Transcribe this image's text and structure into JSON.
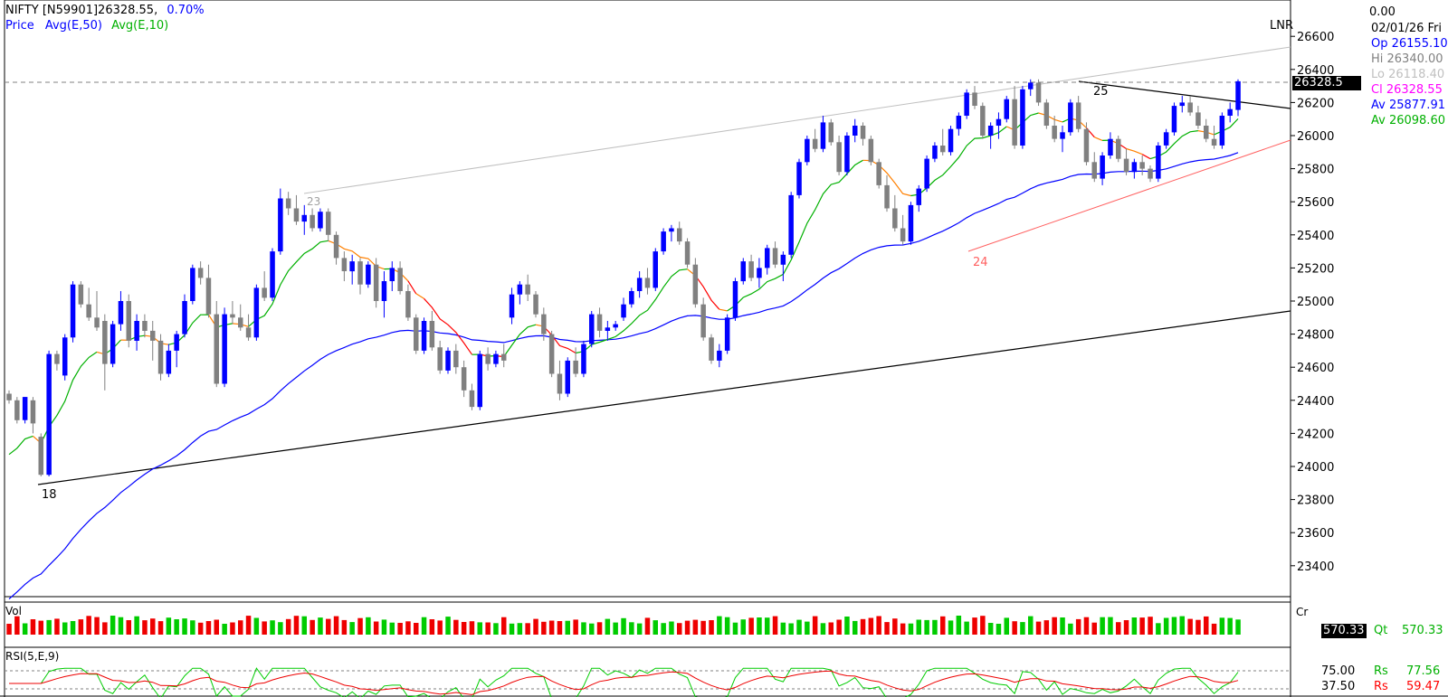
{
  "header": {
    "symbol_line": "NIFTY [N59901]26328.55,",
    "change": "0.70%",
    "legend_price": "Price",
    "legend_avg50": "Avg(E,50)",
    "legend_avg10": "Avg(E,10)"
  },
  "right_panel": {
    "top_value": "0.00",
    "date": "02/01/26 Fri",
    "lnr": "LNR",
    "open": "Op 26155.10",
    "high": "Hi  26340.00",
    "low": "Lo  26118.40",
    "close": "Cl  26328.55",
    "avg1": "Av 25877.91",
    "avg2": "Av 26098.60",
    "last_price_box": "26328.5"
  },
  "volume_panel": {
    "label": "Vol",
    "cr": "Cr",
    "qt_label": "Qt",
    "qt_value": "570.33",
    "box_value": "570.33"
  },
  "rsi_panel": {
    "label": "RSI(5,E,9)",
    "level_high": "75.00",
    "level_low": "37.50",
    "rs1_label": "Rs",
    "rs1_value": "77.56",
    "rs2_label": "Rs",
    "rs2_value": "59.47"
  },
  "annotations": {
    "a18": "18",
    "a23": "23",
    "a24": "24",
    "a25": "25"
  },
  "colors": {
    "up": "#0000ff",
    "down": "#808080",
    "ema50": "#0000ff",
    "ema10": "#00b000",
    "ema_red": "#ff0000",
    "ema_orange": "#ff8000",
    "vol_up": "#00cc00",
    "vol_down": "#ee0000"
  },
  "chart_data": {
    "type": "candlestick",
    "y_ticks": [
      "26600",
      "26400",
      "26200",
      "26000",
      "25800",
      "25600",
      "25400",
      "25200",
      "25000",
      "24800",
      "24600",
      "24400",
      "24200",
      "24000",
      "23800",
      "23600",
      "23400"
    ],
    "ylim": [
      23300,
      26720
    ],
    "candles": [
      [
        24440,
        24460,
        24380,
        24400
      ],
      [
        24400,
        24420,
        24260,
        24280
      ],
      [
        24280,
        24420,
        24260,
        24420
      ],
      [
        24400,
        24420,
        24200,
        24260
      ],
      [
        24180,
        24200,
        23940,
        23950
      ],
      [
        23950,
        24700,
        23940,
        24680
      ],
      [
        24680,
        24700,
        24580,
        24620
      ],
      [
        24550,
        24800,
        24520,
        24780
      ],
      [
        24780,
        25120,
        24750,
        25100
      ],
      [
        25100,
        25120,
        24960,
        24980
      ],
      [
        24980,
        25080,
        24880,
        24900
      ],
      [
        24900,
        25060,
        24820,
        24840
      ],
      [
        24880,
        24920,
        24460,
        24620
      ],
      [
        24620,
        24880,
        24600,
        24860
      ],
      [
        24860,
        25060,
        24820,
        25000
      ],
      [
        25000,
        25040,
        24720,
        24760
      ],
      [
        24760,
        24920,
        24700,
        24880
      ],
      [
        24880,
        24920,
        24780,
        24820
      ],
      [
        24820,
        24880,
        24640,
        24760
      ],
      [
        24760,
        24800,
        24520,
        24560
      ],
      [
        24560,
        24740,
        24540,
        24700
      ],
      [
        24700,
        24820,
        24600,
        24800
      ],
      [
        24800,
        25040,
        24780,
        25000
      ],
      [
        25000,
        25220,
        24980,
        25200
      ],
      [
        25200,
        25240,
        25100,
        25140
      ],
      [
        25140,
        25220,
        24900,
        24920
      ],
      [
        24920,
        25000,
        24480,
        24500
      ],
      [
        24500,
        24960,
        24480,
        24920
      ],
      [
        24920,
        25000,
        24860,
        24900
      ],
      [
        24900,
        24980,
        24820,
        24840
      ],
      [
        24840,
        24920,
        24760,
        24780
      ],
      [
        24780,
        25100,
        24760,
        25080
      ],
      [
        25080,
        25180,
        25000,
        25020
      ],
      [
        25020,
        25320,
        25000,
        25300
      ],
      [
        25300,
        25680,
        25280,
        25620
      ],
      [
        25620,
        25660,
        25520,
        25560
      ],
      [
        25560,
        25640,
        25460,
        25480
      ],
      [
        25480,
        25580,
        25400,
        25520
      ],
      [
        25520,
        25560,
        25420,
        25440
      ],
      [
        25440,
        25560,
        25420,
        25540
      ],
      [
        25540,
        25560,
        25360,
        25400
      ],
      [
        25400,
        25420,
        25220,
        25260
      ],
      [
        25260,
        25300,
        25120,
        25180
      ],
      [
        25180,
        25280,
        25100,
        25240
      ],
      [
        25240,
        25260,
        25040,
        25100
      ],
      [
        25100,
        25240,
        25080,
        25220
      ],
      [
        25220,
        25260,
        24960,
        25000
      ],
      [
        25000,
        25180,
        24900,
        25120
      ],
      [
        25120,
        25240,
        25060,
        25200
      ],
      [
        25200,
        25240,
        25040,
        25060
      ],
      [
        25060,
        25100,
        24880,
        24900
      ],
      [
        24900,
        24920,
        24680,
        24700
      ],
      [
        24700,
        24900,
        24680,
        24880
      ],
      [
        24880,
        24940,
        24700,
        24720
      ],
      [
        24720,
        24760,
        24560,
        24580
      ],
      [
        24580,
        24720,
        24560,
        24700
      ],
      [
        24700,
        24740,
        24560,
        24600
      ],
      [
        24600,
        24640,
        24420,
        24460
      ],
      [
        24460,
        24500,
        24340,
        24360
      ],
      [
        24360,
        24700,
        24340,
        24680
      ],
      [
        24680,
        24720,
        24580,
        24620
      ],
      [
        24620,
        24700,
        24600,
        24680
      ],
      [
        24680,
        24740,
        24600,
        24640
      ],
      [
        24900,
        25080,
        24860,
        25040
      ],
      [
        25040,
        25120,
        24980,
        25100
      ],
      [
        25100,
        25160,
        25000,
        25040
      ],
      [
        25040,
        25060,
        24900,
        24920
      ],
      [
        24920,
        24960,
        24760,
        24800
      ],
      [
        24800,
        24820,
        24540,
        24560
      ],
      [
        24560,
        24640,
        24400,
        24440
      ],
      [
        24440,
        24660,
        24420,
        24640
      ],
      [
        24640,
        24720,
        24540,
        24560
      ],
      [
        24560,
        24760,
        24540,
        24740
      ],
      [
        24740,
        24940,
        24720,
        24920
      ],
      [
        24920,
        24960,
        24780,
        24820
      ],
      [
        24820,
        24880,
        24760,
        24840
      ],
      [
        24840,
        24880,
        24820,
        24860
      ],
      [
        24900,
        25020,
        24880,
        24980
      ],
      [
        24980,
        25080,
        24960,
        25060
      ],
      [
        25060,
        25180,
        25020,
        25140
      ],
      [
        25140,
        25200,
        25040,
        25080
      ],
      [
        25080,
        25320,
        25060,
        25300
      ],
      [
        25300,
        25440,
        25280,
        25420
      ],
      [
        25420,
        25460,
        25360,
        25440
      ],
      [
        25440,
        25480,
        25340,
        25360
      ],
      [
        25360,
        25380,
        25200,
        25220
      ],
      [
        25220,
        25260,
        24960,
        24980
      ],
      [
        24980,
        25020,
        24760,
        24780
      ],
      [
        24780,
        24800,
        24620,
        24640
      ],
      [
        24640,
        24740,
        24600,
        24700
      ],
      [
        24700,
        24920,
        24680,
        24900
      ],
      [
        24900,
        25140,
        24880,
        25120
      ],
      [
        25120,
        25260,
        25100,
        25240
      ],
      [
        25240,
        25280,
        25120,
        25140
      ],
      [
        25140,
        25260,
        25080,
        25200
      ],
      [
        25200,
        25340,
        25160,
        25320
      ],
      [
        25320,
        25360,
        25200,
        25220
      ],
      [
        25220,
        25300,
        25120,
        25280
      ],
      [
        25280,
        25660,
        25260,
        25640
      ],
      [
        25640,
        25860,
        25620,
        25840
      ],
      [
        25840,
        26000,
        25820,
        25980
      ],
      [
        25980,
        26040,
        25900,
        25920
      ],
      [
        25920,
        26120,
        25900,
        26080
      ],
      [
        26080,
        26100,
        25940,
        25960
      ],
      [
        25960,
        26000,
        25760,
        25780
      ],
      [
        25780,
        26020,
        25760,
        26000
      ],
      [
        26000,
        26100,
        25960,
        26060
      ],
      [
        26060,
        26080,
        25940,
        25980
      ],
      [
        25980,
        26000,
        25820,
        25840
      ],
      [
        25840,
        25860,
        25680,
        25700
      ],
      [
        25700,
        25760,
        25540,
        25560
      ],
      [
        25560,
        25640,
        25420,
        25440
      ],
      [
        25440,
        25520,
        25340,
        25360
      ],
      [
        25360,
        25600,
        25340,
        25580
      ],
      [
        25580,
        25700,
        25540,
        25680
      ],
      [
        25680,
        25880,
        25660,
        25860
      ],
      [
        25860,
        25960,
        25840,
        25940
      ],
      [
        25940,
        26040,
        25880,
        25900
      ],
      [
        25900,
        26060,
        25880,
        26040
      ],
      [
        26040,
        26140,
        26000,
        26120
      ],
      [
        26120,
        26280,
        26100,
        26260
      ],
      [
        26260,
        26300,
        26160,
        26180
      ],
      [
        26180,
        26200,
        25980,
        26000
      ],
      [
        26000,
        26080,
        25920,
        26060
      ],
      [
        26060,
        26140,
        25980,
        26100
      ],
      [
        26100,
        26240,
        26080,
        26220
      ],
      [
        26220,
        26300,
        25920,
        25940
      ],
      [
        25940,
        26300,
        25920,
        26280
      ],
      [
        26280,
        26340,
        26240,
        26320
      ],
      [
        26320,
        26340,
        26180,
        26200
      ],
      [
        26200,
        26220,
        26040,
        26060
      ],
      [
        26060,
        26120,
        25960,
        25980
      ],
      [
        25980,
        26060,
        25900,
        26020
      ],
      [
        26020,
        26220,
        26000,
        26200
      ],
      [
        26200,
        26240,
        26020,
        26040
      ],
      [
        26040,
        26080,
        25820,
        25840
      ],
      [
        25840,
        25900,
        25720,
        25740
      ],
      [
        25740,
        25900,
        25700,
        25880
      ],
      [
        25880,
        26020,
        25860,
        25980
      ],
      [
        25980,
        26000,
        25840,
        25860
      ],
      [
        25860,
        25920,
        25760,
        25780
      ],
      [
        25780,
        25860,
        25740,
        25840
      ],
      [
        25840,
        25880,
        25760,
        25800
      ],
      [
        25800,
        25820,
        25720,
        25740
      ],
      [
        25740,
        25960,
        25720,
        25940
      ],
      [
        25940,
        26040,
        25920,
        26020
      ],
      [
        26020,
        26200,
        26000,
        26180
      ],
      [
        26180,
        26240,
        26140,
        26200
      ],
      [
        26200,
        26240,
        26120,
        26140
      ],
      [
        26140,
        26180,
        26040,
        26060
      ],
      [
        26060,
        26100,
        25960,
        25980
      ],
      [
        25980,
        26060,
        25920,
        25940
      ],
      [
        25940,
        26140,
        25920,
        26120
      ],
      [
        26120,
        26200,
        26080,
        26160
      ],
      [
        26155.1,
        26340,
        26118.4,
        26328.55
      ]
    ]
  }
}
